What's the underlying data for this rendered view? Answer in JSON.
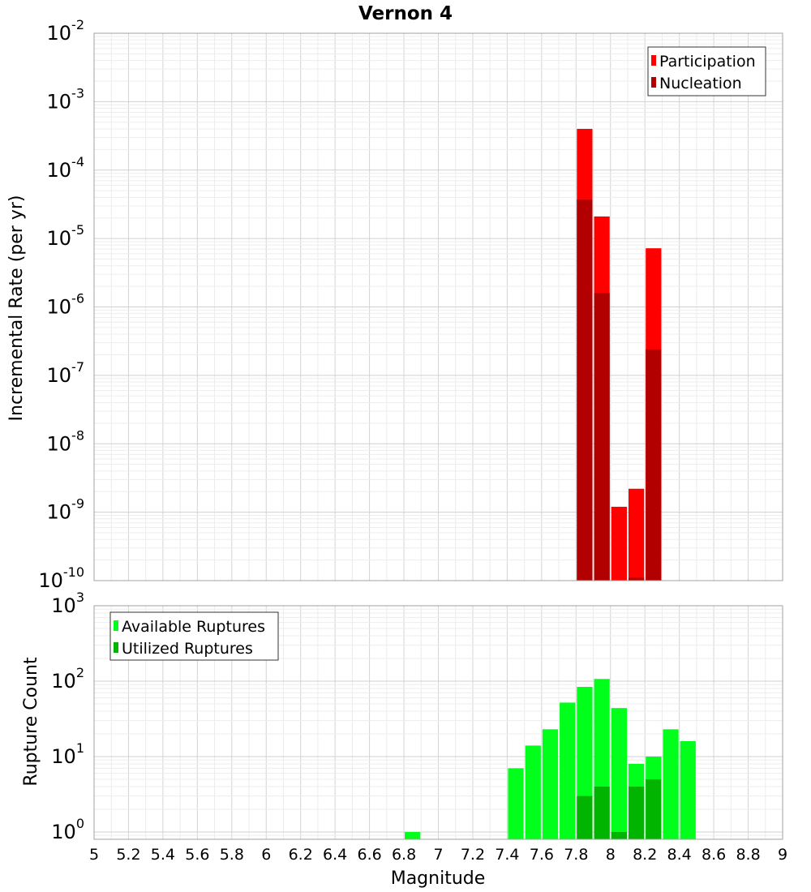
{
  "chart_data": {
    "title": "Vernon 4",
    "xlabel": "Magnitude",
    "xlim": [
      5,
      9
    ],
    "x_ticks": [
      "5",
      "5.2",
      "5.4",
      "5.6",
      "5.8",
      "6",
      "6.2",
      "6.4",
      "6.6",
      "6.8",
      "7",
      "7.2",
      "7.4",
      "7.6",
      "7.8",
      "8",
      "8.2",
      "8.4",
      "8.6",
      "8.8",
      "9"
    ],
    "grid": true,
    "panels": [
      {
        "type": "bar",
        "ylabel": "Incremental Rate (per yr)",
        "yscale": "log",
        "ylim": [
          1e-10,
          0.01
        ],
        "y_tick_exponents": [
          -10,
          -9,
          -8,
          -7,
          -6,
          -5,
          -4,
          -3,
          -2
        ],
        "legend_position": "top-right",
        "bar_width": 0.1,
        "series": [
          {
            "name": "Participation",
            "color": "#ff0000",
            "x": [
              7.85,
              7.95,
              8.05,
              8.15,
              8.25
            ],
            "values": [
              0.0004,
              2.1e-05,
              1.2e-09,
              2.2e-09,
              7.2e-06
            ]
          },
          {
            "name": "Nucleation",
            "color": "#b20000",
            "x": [
              7.85,
              7.95,
              8.15,
              8.25
            ],
            "values": [
              3.7e-05,
              1.6e-06,
              1.1e-10,
              2.4e-07
            ]
          }
        ]
      },
      {
        "type": "bar",
        "ylabel": "Rupture Count",
        "yscale": "log",
        "ylim": [
          0.8,
          1000
        ],
        "y_tick_exponents": [
          0,
          1,
          2,
          3
        ],
        "legend_position": "top-left",
        "bar_width": 0.1,
        "series": [
          {
            "name": "Available Ruptures",
            "color": "#00ff1a",
            "x": [
              6.85,
              7.45,
              7.55,
              7.65,
              7.75,
              7.85,
              7.95,
              8.05,
              8.15,
              8.25,
              8.35,
              8.45
            ],
            "values": [
              1,
              7,
              14,
              23,
              52,
              84,
              107,
              44,
              8,
              10,
              23,
              16
            ]
          },
          {
            "name": "Utilized Ruptures",
            "color": "#00b400",
            "x": [
              7.85,
              7.95,
              8.05,
              8.15,
              8.25
            ],
            "values": [
              3,
              4,
              1,
              4,
              5
            ]
          }
        ]
      }
    ]
  }
}
